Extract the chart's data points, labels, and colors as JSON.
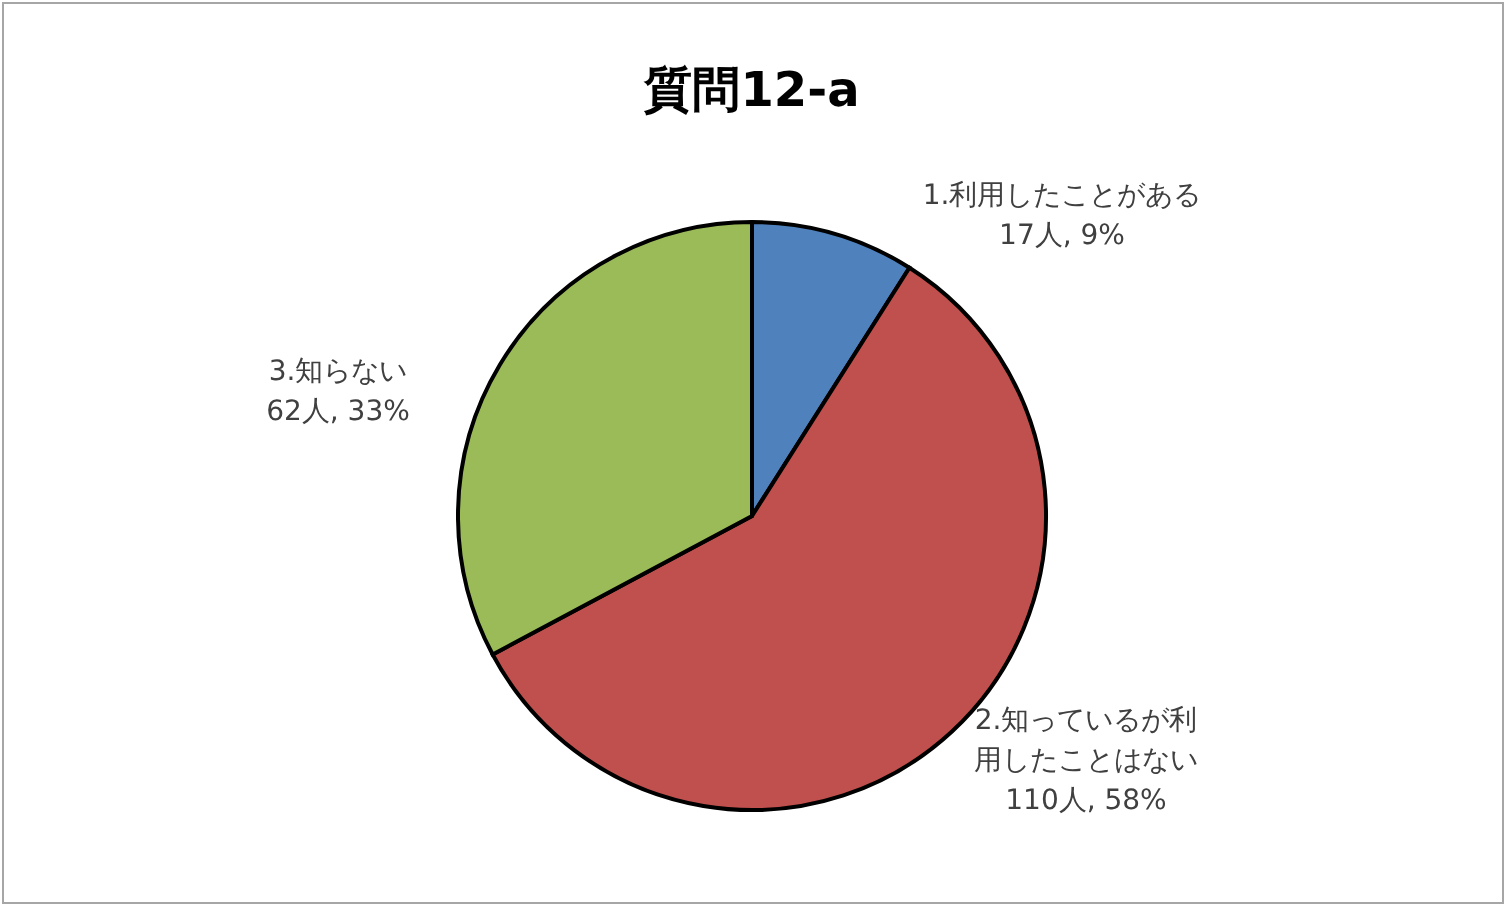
{
  "chart_data": {
    "type": "pie",
    "title": "質問12-a",
    "categories": [
      "1.利用したことがある",
      "2.知っているが利用したことはない",
      "3.知らない"
    ],
    "values": [
      17,
      110,
      62
    ],
    "colors": [
      "#4f81bd",
      "#c0504d",
      "#9bbb59"
    ],
    "value_labels": [
      "17人, 9%",
      "110人, 58%",
      "62人, 33%"
    ]
  }
}
